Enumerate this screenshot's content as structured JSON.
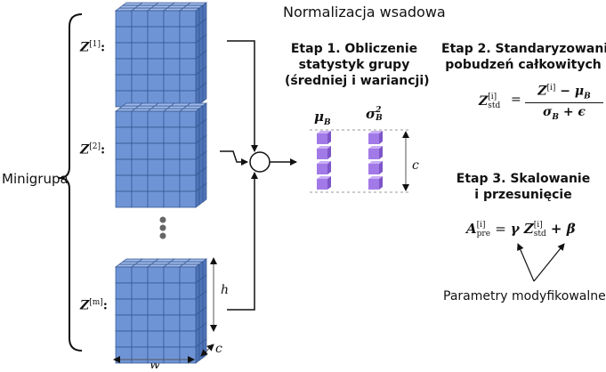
{
  "title": "Normalizacja wsadowa",
  "minibatch_label": "Minigrupa",
  "steps": {
    "step1": {
      "line1": "Etap 1. Obliczenie",
      "line2": "statystyk grupy",
      "line3": "(średniej i wariancji)"
    },
    "step2": {
      "line1": "Etap 2. Standaryzowanie",
      "line2": "pobudzeń całkowitych"
    },
    "step3": {
      "line1": "Etap 3. Skalowanie",
      "line2": "i przesunięcie"
    }
  },
  "z_labels": [
    {
      "base": "Z",
      "sup": "[1]",
      "suffix": ":"
    },
    {
      "base": "Z",
      "sup": "[2]",
      "suffix": ":"
    },
    {
      "base": "Z",
      "sup": "[m]",
      "suffix": ":"
    }
  ],
  "stats": {
    "mean": "μ",
    "mean_sub": "B",
    "var": "σ",
    "var_sub": "B",
    "var_sup": "2"
  },
  "dims": {
    "h": "h",
    "w": "w",
    "c": "c",
    "c_stats": "c"
  },
  "sum_symbol": "Σ",
  "eq2": {
    "lhs": "Z",
    "lhs_sup": "[i]",
    "lhs_sub": "std",
    "num": "Z",
    "num_sup": "[i]",
    "num_minus": " − μ",
    "num_sub": "B",
    "den": "σ",
    "den_sub": "B",
    "den_plus": " + ϵ"
  },
  "eq3": {
    "lhs": "A",
    "lhs_sup": "[i]",
    "lhs_sub": "pre",
    "gamma": "γ",
    "z": "Z",
    "z_sup": "[i]",
    "z_sub": "std",
    "plus_beta": " + β"
  },
  "params_label": "Parametry modyfikowalne",
  "colors": {
    "cube_front": "#6f94d6",
    "cube_top": "#9fbaea",
    "cube_side": "#4f74b8",
    "cube_line": "#34558f",
    "stat_front": "#a27ae8",
    "stat_top": "#c9adf5",
    "stat_side": "#7e55c9"
  }
}
